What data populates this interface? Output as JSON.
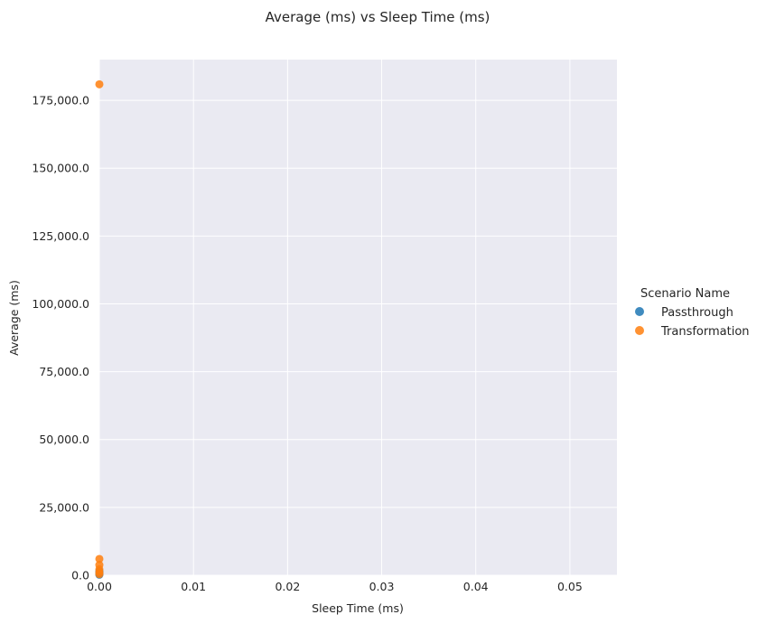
{
  "chart_data": {
    "type": "scatter",
    "title": "Average (ms) vs Sleep Time (ms)",
    "xlabel": "Sleep Time (ms)",
    "ylabel": "Average (ms)",
    "xlim": [
      0,
      0.055
    ],
    "ylim": [
      0,
      190000
    ],
    "x_ticks": [
      0.0,
      0.01,
      0.02,
      0.03,
      0.04,
      0.05
    ],
    "x_tick_labels": [
      "0.00",
      "0.01",
      "0.02",
      "0.03",
      "0.04",
      "0.05"
    ],
    "y_ticks": [
      0,
      25000,
      50000,
      75000,
      100000,
      125000,
      150000,
      175000
    ],
    "y_tick_labels": [
      "0.0",
      "25,000.0",
      "50,000.0",
      "75,000.0",
      "100,000.0",
      "125,000.0",
      "150,000.0",
      "175,000.0"
    ],
    "grid": true,
    "legend": {
      "title": "Scenario Name",
      "placement": "right"
    },
    "series": [
      {
        "name": "Passthrough",
        "color": "#1f77b4",
        "points": [
          {
            "x": 0,
            "y": 200
          },
          {
            "x": 0,
            "y": 500
          },
          {
            "x": 0,
            "y": 900
          },
          {
            "x": 0,
            "y": 1500
          }
        ]
      },
      {
        "name": "Transformation",
        "color": "#ff7f0e",
        "points": [
          {
            "x": 0,
            "y": 180900
          },
          {
            "x": 0,
            "y": 6000
          },
          {
            "x": 0,
            "y": 3800
          },
          {
            "x": 0,
            "y": 2200
          },
          {
            "x": 0,
            "y": 1200
          },
          {
            "x": 0,
            "y": 400
          }
        ]
      }
    ]
  }
}
